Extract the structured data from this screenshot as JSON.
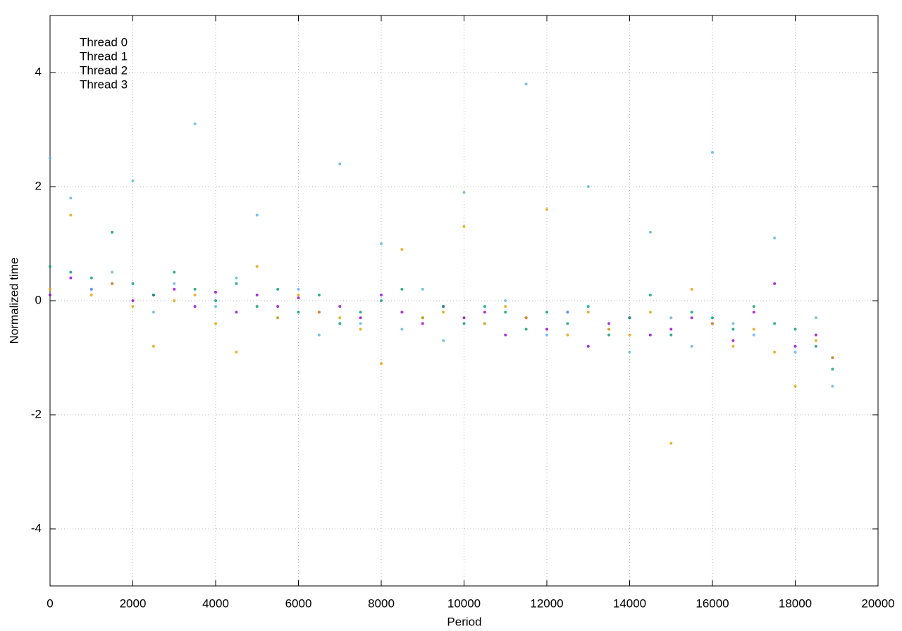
{
  "chart_data": {
    "type": "scatter",
    "xlabel": "Period",
    "ylabel": "Normalized time",
    "xlim": [
      0,
      20000
    ],
    "ylim": [
      -5,
      5
    ],
    "xticks": [
      0,
      2000,
      4000,
      6000,
      8000,
      10000,
      12000,
      14000,
      16000,
      18000,
      20000
    ],
    "yticks": [
      -4,
      -2,
      0,
      2,
      4
    ],
    "grid": true,
    "legend": "upper left",
    "x": [
      0,
      500,
      1000,
      1500,
      2000,
      2500,
      3000,
      3500,
      4000,
      4500,
      5000,
      5500,
      6000,
      6500,
      7000,
      7500,
      8000,
      8500,
      9000,
      9500,
      10000,
      10500,
      11000,
      11500,
      12000,
      12500,
      13000,
      13500,
      14000,
      14500,
      15000,
      15500,
      16000,
      16500,
      17000,
      17500,
      18000,
      18500,
      18900
    ],
    "series": [
      {
        "name": "Thread 0",
        "color": "#9400d3",
        "values": [
          0.1,
          0.4,
          0.2,
          0.3,
          0.0,
          0.1,
          0.2,
          -0.1,
          0.15,
          -0.2,
          0.1,
          -0.1,
          0.05,
          -0.2,
          -0.1,
          -0.3,
          0.1,
          -0.2,
          -0.4,
          -0.1,
          -0.3,
          -0.2,
          -0.6,
          -0.3,
          -0.5,
          -0.2,
          -0.8,
          -0.4,
          -0.3,
          -0.6,
          -0.5,
          -0.3,
          -0.4,
          -0.7,
          -0.2,
          0.3,
          -0.8,
          -0.6,
          -1.0
        ]
      },
      {
        "name": "Thread 1",
        "color": "#009e73",
        "values": [
          0.6,
          0.5,
          0.4,
          1.2,
          0.3,
          0.1,
          0.5,
          0.2,
          0.0,
          0.3,
          -0.1,
          0.2,
          -0.2,
          0.1,
          -0.4,
          -0.2,
          0.0,
          0.2,
          -0.3,
          -0.1,
          -0.4,
          -0.1,
          -0.2,
          -0.5,
          -0.2,
          -0.4,
          -0.1,
          -0.6,
          -0.3,
          0.1,
          -0.6,
          -0.2,
          -0.3,
          -0.5,
          -0.1,
          -0.4,
          -0.5,
          -0.8,
          -1.2
        ]
      },
      {
        "name": "Thread 2",
        "color": "#56b4e9",
        "values": [
          2.5,
          1.8,
          0.2,
          0.5,
          2.1,
          -0.2,
          0.3,
          3.1,
          -0.1,
          0.4,
          1.5,
          -0.3,
          0.2,
          -0.6,
          2.4,
          -0.4,
          1.0,
          -0.5,
          0.2,
          -0.7,
          1.9,
          -0.4,
          0.0,
          3.8,
          -0.6,
          -0.2,
          2.0,
          -0.5,
          -0.9,
          1.2,
          -0.3,
          -0.8,
          2.6,
          -0.4,
          -0.6,
          1.1,
          -0.9,
          -0.3,
          -1.5
        ]
      },
      {
        "name": "Thread 3",
        "color": "#e69f00",
        "values": [
          0.2,
          1.5,
          0.1,
          0.3,
          -0.1,
          -0.8,
          0.0,
          0.1,
          -0.4,
          -0.9,
          0.6,
          -0.3,
          0.1,
          -0.2,
          -0.3,
          -0.5,
          -1.1,
          0.9,
          -0.3,
          -0.2,
          1.3,
          -0.4,
          -0.1,
          -0.3,
          1.6,
          -0.6,
          -0.2,
          -0.5,
          -0.6,
          -0.2,
          -2.5,
          0.2,
          -0.4,
          -0.8,
          -0.5,
          -0.9,
          -1.5,
          -0.7,
          -1.0
        ]
      }
    ]
  }
}
